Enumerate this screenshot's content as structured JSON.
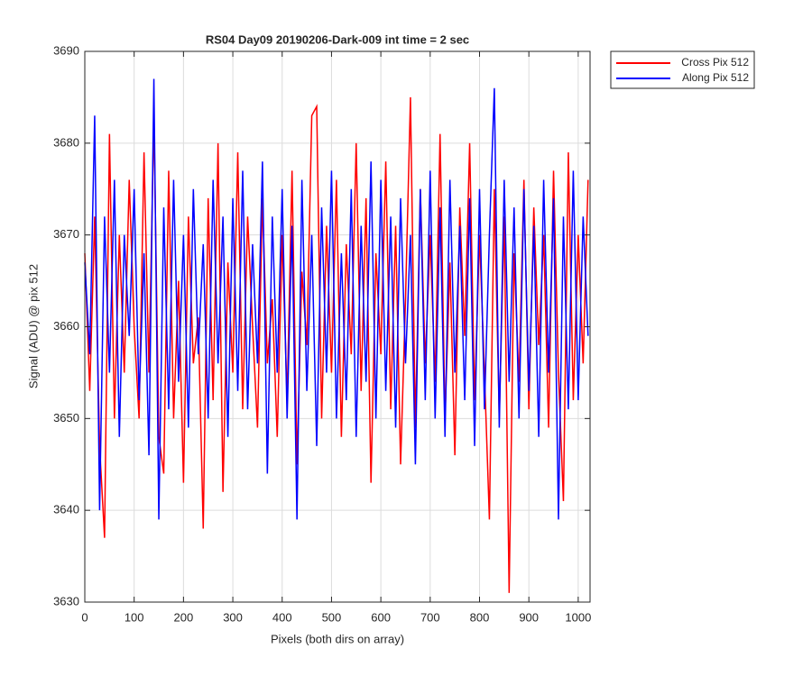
{
  "chart_data": {
    "type": "line",
    "title": "RS04 Day09 20190206-Dark-009 int time = 2 sec",
    "x_label": "Pixels (both dirs on array)",
    "y_label": "Signal (ADU) @ pix 512",
    "x": [
      0,
      10,
      20,
      30,
      40,
      50,
      60,
      70,
      80,
      90,
      100,
      110,
      120,
      130,
      140,
      150,
      160,
      170,
      180,
      190,
      200,
      210,
      220,
      230,
      240,
      250,
      260,
      270,
      280,
      290,
      300,
      310,
      320,
      330,
      340,
      350,
      360,
      370,
      380,
      390,
      400,
      410,
      420,
      430,
      440,
      450,
      460,
      470,
      480,
      490,
      500,
      510,
      520,
      530,
      540,
      550,
      560,
      570,
      580,
      590,
      600,
      610,
      620,
      630,
      640,
      650,
      660,
      670,
      680,
      690,
      700,
      710,
      720,
      730,
      740,
      750,
      760,
      770,
      780,
      790,
      800,
      810,
      820,
      830,
      840,
      850,
      860,
      870,
      880,
      890,
      900,
      910,
      920,
      930,
      940,
      950,
      960,
      970,
      980,
      990,
      1000,
      1010,
      1020
    ],
    "series": [
      {
        "name": "Cross Pix 512",
        "color": "#ff0000",
        "values": [
          3668,
          3653,
          3672,
          3647,
          3637,
          3681,
          3650,
          3670,
          3655,
          3676,
          3660,
          3650,
          3679,
          3655,
          3683,
          3648,
          3644,
          3677,
          3650,
          3665,
          3643,
          3672,
          3656,
          3661,
          3638,
          3674,
          3652,
          3680,
          3642,
          3667,
          3655,
          3679,
          3651,
          3672,
          3660,
          3649,
          3674,
          3656,
          3663,
          3648,
          3670,
          3652,
          3677,
          3645,
          3666,
          3658,
          3683,
          3684,
          3650,
          3671,
          3655,
          3676,
          3648,
          3669,
          3657,
          3680,
          3653,
          3674,
          3643,
          3668,
          3657,
          3678,
          3651,
          3671,
          3645,
          3663,
          3685,
          3649,
          3675,
          3656,
          3670,
          3654,
          3681,
          3650,
          3667,
          3646,
          3673,
          3659,
          3680,
          3652,
          3670,
          3655,
          3639,
          3675,
          3650,
          3672,
          3631,
          3668,
          3654,
          3676,
          3651,
          3673,
          3658,
          3670,
          3649,
          3677,
          3655,
          3641,
          3679,
          3652,
          3670,
          3656,
          3676
        ]
      },
      {
        "name": "Along Pix 512",
        "color": "#0000ff",
        "values": [
          3667,
          3657,
          3683,
          3640,
          3672,
          3655,
          3676,
          3648,
          3670,
          3659,
          3675,
          3652,
          3668,
          3646,
          3687,
          3639,
          3673,
          3651,
          3676,
          3654,
          3670,
          3649,
          3675,
          3657,
          3669,
          3650,
          3676,
          3656,
          3672,
          3648,
          3674,
          3653,
          3677,
          3651,
          3669,
          3656,
          3678,
          3644,
          3672,
          3655,
          3675,
          3650,
          3671,
          3639,
          3676,
          3653,
          3670,
          3647,
          3673,
          3655,
          3677,
          3650,
          3668,
          3652,
          3675,
          3648,
          3671,
          3654,
          3678,
          3650,
          3676,
          3653,
          3672,
          3649,
          3674,
          3656,
          3670,
          3645,
          3675,
          3652,
          3677,
          3650,
          3673,
          3648,
          3676,
          3655,
          3671,
          3652,
          3674,
          3647,
          3675,
          3651,
          3670,
          3686,
          3649,
          3676,
          3654,
          3673,
          3650,
          3675,
          3653,
          3671,
          3648,
          3676,
          3655,
          3674,
          3639,
          3672,
          3651,
          3677,
          3652,
          3672,
          3659
        ]
      }
    ],
    "xlim": [
      0,
      1024
    ],
    "xticks": [
      0,
      100,
      200,
      300,
      400,
      500,
      600,
      700,
      800,
      900,
      1000
    ],
    "ylim": [
      3630,
      3690
    ],
    "yticks": [
      3630,
      3640,
      3650,
      3660,
      3670,
      3680,
      3690
    ],
    "grid": true,
    "legend": "outside-right"
  }
}
